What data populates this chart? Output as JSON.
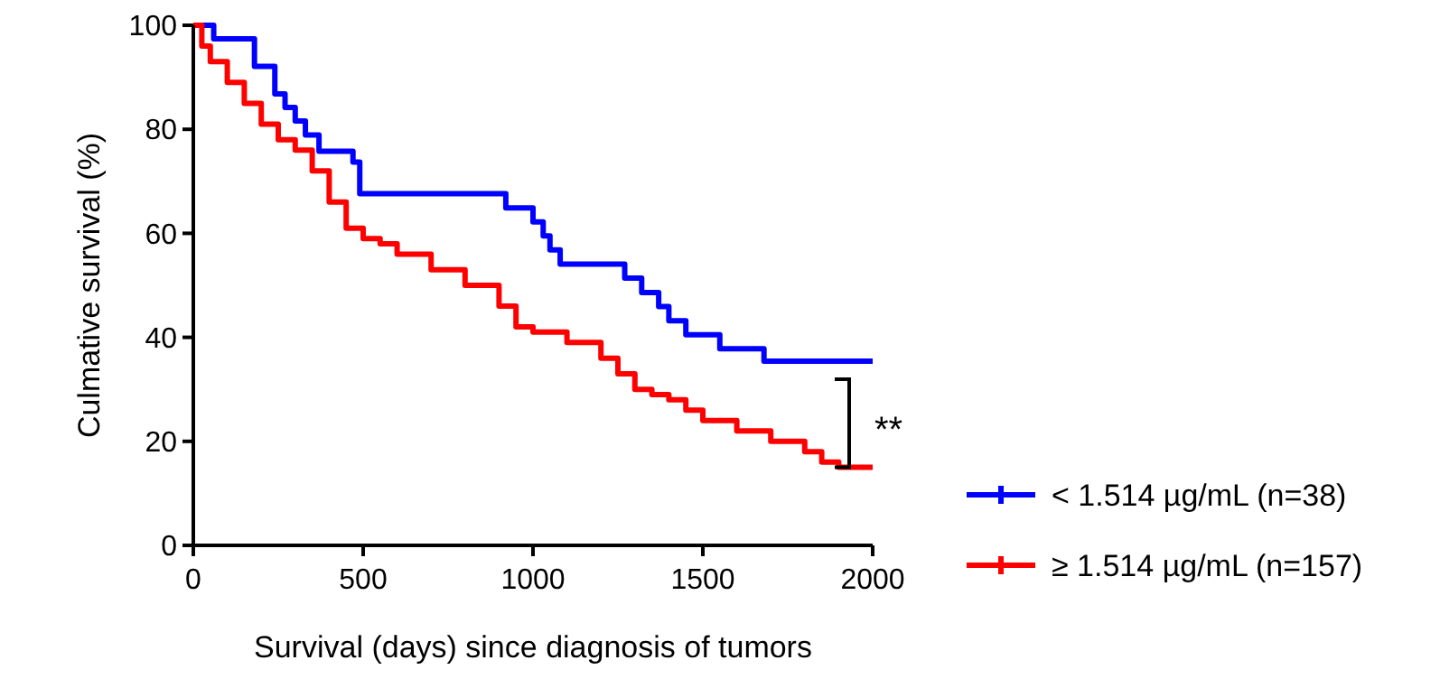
{
  "chart_data": {
    "type": "step",
    "xlabel": "Survival (days) since diagnosis of tumors",
    "ylabel": "Culmative survival (%)",
    "xlim": [
      0,
      2000
    ],
    "xticks": [
      0,
      500,
      1000,
      1500,
      2000
    ],
    "ylim": [
      0,
      100
    ],
    "yticks": [
      0,
      20,
      40,
      60,
      80,
      100
    ],
    "grid": false,
    "legend": "bottom right",
    "annotations": [
      "**"
    ],
    "series": [
      {
        "name": "< 1.514 µg/mL (n=38)",
        "color": "#0000ff",
        "x": [
          0,
          60,
          180,
          240,
          270,
          300,
          330,
          370,
          470,
          490,
          920,
          1000,
          1030,
          1050,
          1080,
          1270,
          1320,
          1370,
          1400,
          1450,
          1550,
          1680,
          2000
        ],
        "values": [
          100,
          97.4,
          92.1,
          86.8,
          84.2,
          81.6,
          78.9,
          75.8,
          73.7,
          67.6,
          64.9,
          62.2,
          59.5,
          56.8,
          54.1,
          51.4,
          48.6,
          45.9,
          43.2,
          40.5,
          37.8,
          35.4,
          35.4
        ]
      },
      {
        "name": "≥ 1.514 µg/mL (n=157)",
        "color": "#ff0000",
        "x": [
          0,
          25,
          50,
          100,
          150,
          200,
          250,
          300,
          350,
          400,
          450,
          500,
          550,
          600,
          700,
          800,
          900,
          950,
          1000,
          1100,
          1200,
          1250,
          1300,
          1350,
          1400,
          1450,
          1500,
          1600,
          1700,
          1800,
          1850,
          1900,
          2000
        ],
        "values": [
          100,
          96,
          93,
          89,
          85,
          81,
          78,
          76,
          72,
          66,
          61,
          59,
          58,
          56,
          53,
          50,
          46,
          42,
          41,
          39,
          36,
          33,
          30,
          29,
          28,
          26,
          24,
          22,
          20,
          18,
          16,
          15,
          15
        ]
      }
    ]
  }
}
